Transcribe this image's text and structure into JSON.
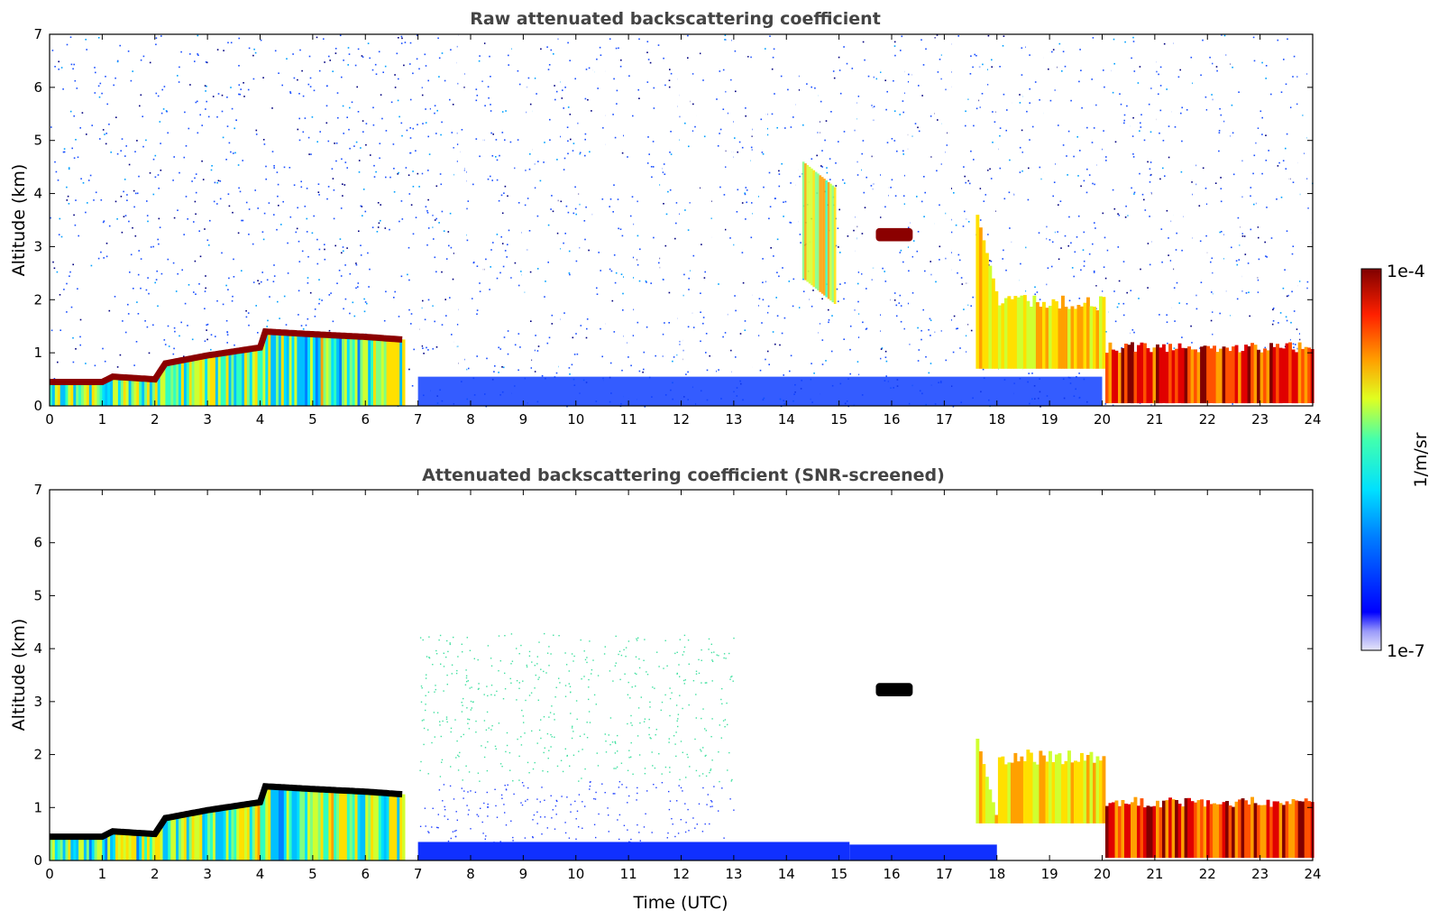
{
  "chart_data": [
    {
      "type": "heatmap",
      "title": "Raw attenuated backscattering coefficient",
      "xlabel": "",
      "ylabel": "Altitude (km)",
      "xlim": [
        0,
        24
      ],
      "ylim": [
        0,
        7
      ],
      "x_ticks": [
        "0",
        "1",
        "2",
        "3",
        "4",
        "5",
        "6",
        "7",
        "8",
        "9",
        "10",
        "11",
        "12",
        "13",
        "14",
        "15",
        "16",
        "17",
        "18",
        "19",
        "20",
        "21",
        "22",
        "23",
        "24"
      ],
      "y_ticks": [
        "0",
        "1",
        "2",
        "3",
        "4",
        "5",
        "6",
        "7"
      ],
      "features": {
        "boundary_layer_top_km": [
          {
            "t": 0.0,
            "z": 0.45
          },
          {
            "t": 1.0,
            "z": 0.45
          },
          {
            "t": 1.2,
            "z": 0.55
          },
          {
            "t": 2.0,
            "z": 0.5
          },
          {
            "t": 2.2,
            "z": 0.8
          },
          {
            "t": 3.0,
            "z": 0.95
          },
          {
            "t": 4.0,
            "z": 1.1
          },
          {
            "t": 4.1,
            "z": 1.4
          },
          {
            "t": 5.0,
            "z": 1.35
          },
          {
            "t": 6.0,
            "z": 1.3
          },
          {
            "t": 6.7,
            "z": 1.25
          }
        ],
        "cirrus_patch": {
          "t_start": 14.3,
          "t_end": 14.9,
          "z_start": 2.4,
          "z_end": 4.6
        },
        "elevated_layer": {
          "t_start": 15.7,
          "t_end": 16.4,
          "z_start": 3.1,
          "z_end": 3.35
        },
        "evening_cloud": {
          "t_start": 17.6,
          "t_end": 24.0,
          "z_start": 0.2,
          "z_end": 3.6
        }
      }
    },
    {
      "type": "heatmap",
      "title": "Attenuated backscattering coefficient (SNR-screened)",
      "xlabel": "Time (UTC)",
      "ylabel": "Altitude (km)",
      "xlim": [
        0,
        24
      ],
      "ylim": [
        0,
        7
      ],
      "x_ticks": [
        "0",
        "1",
        "2",
        "3",
        "4",
        "5",
        "6",
        "7",
        "8",
        "9",
        "10",
        "11",
        "12",
        "13",
        "14",
        "15",
        "16",
        "17",
        "18",
        "19",
        "20",
        "21",
        "22",
        "23",
        "24"
      ],
      "y_ticks": [
        "0",
        "1",
        "2",
        "3",
        "4",
        "5",
        "6",
        "7"
      ],
      "features": {
        "boundary_layer_top_km": [
          {
            "t": 0.0,
            "z": 0.45
          },
          {
            "t": 1.0,
            "z": 0.45
          },
          {
            "t": 1.2,
            "z": 0.55
          },
          {
            "t": 2.0,
            "z": 0.5
          },
          {
            "t": 2.2,
            "z": 0.8
          },
          {
            "t": 3.0,
            "z": 0.95
          },
          {
            "t": 4.0,
            "z": 1.1
          },
          {
            "t": 4.1,
            "z": 1.4
          },
          {
            "t": 5.0,
            "z": 1.35
          },
          {
            "t": 6.0,
            "z": 1.3
          },
          {
            "t": 6.7,
            "z": 1.25
          }
        ],
        "elevated_layer": {
          "t_start": 15.7,
          "t_end": 16.4,
          "z_start": 3.1,
          "z_end": 3.35
        },
        "evening_cloud": {
          "t_start": 17.6,
          "t_end": 24.0,
          "z_start": 0.2,
          "z_end": 2.3
        }
      }
    }
  ],
  "colorbar": {
    "label": "1/m/sr",
    "max_label": "1e-4",
    "min_label": "1e-7",
    "min": 1e-07,
    "max": 0.0001,
    "scale": "log",
    "colormap": "jet"
  }
}
